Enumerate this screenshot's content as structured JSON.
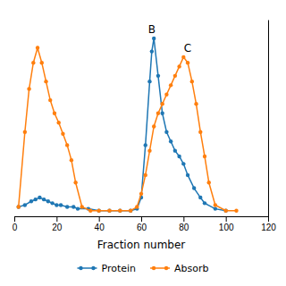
{
  "chart_data": {
    "type": "line",
    "xlabel": "Fraction number",
    "marker": "circle",
    "series": [
      {
        "name": "Protein",
        "x": [
          2,
          5,
          8,
          10,
          12,
          14,
          16,
          18,
          20,
          22,
          25,
          28,
          30,
          35,
          40,
          45,
          50,
          55,
          58,
          60,
          62,
          64,
          65,
          66,
          68,
          70,
          72,
          74,
          76,
          78,
          80,
          82,
          85,
          88,
          90,
          95,
          100
        ],
        "values": [
          0.05,
          0.06,
          0.08,
          0.09,
          0.1,
          0.09,
          0.08,
          0.07,
          0.06,
          0.06,
          0.05,
          0.05,
          0.04,
          0.04,
          0.03,
          0.03,
          0.03,
          0.03,
          0.04,
          0.1,
          0.38,
          0.72,
          0.88,
          0.95,
          0.75,
          0.55,
          0.45,
          0.4,
          0.35,
          0.32,
          0.28,
          0.22,
          0.15,
          0.1,
          0.07,
          0.04,
          0.03
        ]
      },
      {
        "name": "Absorb",
        "x": [
          2,
          5,
          7,
          9,
          11,
          13,
          15,
          17,
          19,
          21,
          23,
          25,
          27,
          29,
          32,
          36,
          40,
          45,
          50,
          55,
          58,
          60,
          62,
          64,
          66,
          68,
          70,
          72,
          74,
          76,
          78,
          80,
          82,
          84,
          86,
          88,
          90,
          92,
          95,
          100,
          105
        ],
        "values": [
          0.05,
          0.45,
          0.68,
          0.82,
          0.9,
          0.82,
          0.72,
          0.62,
          0.55,
          0.5,
          0.44,
          0.38,
          0.3,
          0.18,
          0.05,
          0.03,
          0.03,
          0.03,
          0.03,
          0.03,
          0.05,
          0.12,
          0.22,
          0.35,
          0.48,
          0.55,
          0.6,
          0.65,
          0.7,
          0.75,
          0.8,
          0.85,
          0.82,
          0.72,
          0.6,
          0.45,
          0.32,
          0.18,
          0.06,
          0.03,
          0.03
        ]
      }
    ],
    "annotations": [
      {
        "text": "B",
        "x": 65,
        "y": 0.97
      },
      {
        "text": "C",
        "x": 82,
        "y": 0.87
      }
    ],
    "xlim": [
      0,
      120
    ],
    "ylim": [
      0,
      1.05
    ],
    "xticks": [
      0,
      20,
      40,
      60,
      80,
      100,
      120
    ],
    "tick_labels": "x",
    "grid": false,
    "legend": "bottom"
  }
}
